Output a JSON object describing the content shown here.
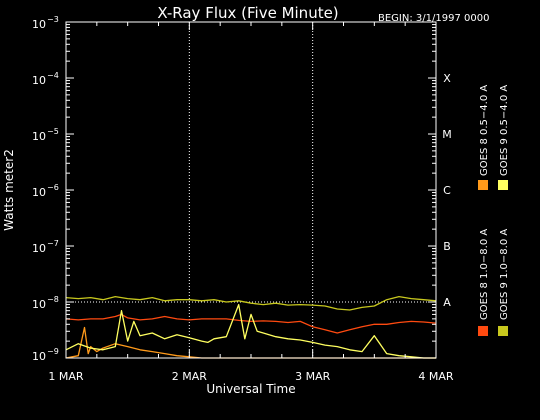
{
  "chart_data": {
    "type": "line",
    "title": "X-Ray Flux (Five Minute)",
    "begin_label": "BEGIN: 3/1/1997 0000",
    "xlabel": "Universal Time",
    "ylabel": "Watts meter2",
    "y_scale": "log",
    "ylim": [
      1e-09,
      0.001
    ],
    "y_ticks": [
      {
        "base": "10",
        "exp": "−9"
      },
      {
        "base": "10",
        "exp": "−8"
      },
      {
        "base": "10",
        "exp": "−7"
      },
      {
        "base": "10",
        "exp": "−6"
      },
      {
        "base": "10",
        "exp": "−5"
      },
      {
        "base": "10",
        "exp": "−4"
      },
      {
        "base": "10",
        "exp": "−3"
      }
    ],
    "x_ticks": [
      "1 MAR",
      "2 MAR",
      "3 MAR",
      "4 MAR"
    ],
    "x_range_days": [
      0,
      3
    ],
    "grid": "dotted vertical at day boundaries, dotted horizontal at 1e-8",
    "flare_classes": [
      {
        "label": "A",
        "level": 1e-08
      },
      {
        "label": "B",
        "level": 1e-07
      },
      {
        "label": "C",
        "level": 1e-06
      },
      {
        "label": "M",
        "level": 1e-05
      },
      {
        "label": "X",
        "level": 0.0001
      }
    ],
    "series": [
      {
        "name": "GOES 8 1.0−8.0 A",
        "color": "#ff4a10",
        "x": [
          0,
          0.1,
          0.2,
          0.3,
          0.4,
          0.45,
          0.5,
          0.6,
          0.7,
          0.8,
          0.9,
          1.0,
          1.1,
          1.2,
          1.3,
          1.4,
          1.5,
          1.6,
          1.7,
          1.8,
          1.9,
          2.0,
          2.1,
          2.2,
          2.3,
          2.4,
          2.5,
          2.6,
          2.7,
          2.8,
          2.9,
          3.0
        ],
        "values": [
          5e-09,
          4.8e-09,
          5e-09,
          5e-09,
          5.5e-09,
          6e-09,
          5.2e-09,
          4.8e-09,
          5e-09,
          5.5e-09,
          5e-09,
          4.8e-09,
          5e-09,
          5e-09,
          5e-09,
          4.7e-09,
          4.5e-09,
          4.6e-09,
          4.5e-09,
          4.3e-09,
          4.5e-09,
          3.6e-09,
          3.2e-09,
          2.8e-09,
          3.2e-09,
          3.6e-09,
          4e-09,
          4e-09,
          4.3e-09,
          4.5e-09,
          4.4e-09,
          4.2e-09
        ]
      },
      {
        "name": "GOES 8 0.5−4.0 A",
        "color": "#ff9a1a",
        "x": [
          0,
          0.05,
          0.1,
          0.15,
          0.18,
          0.2,
          0.25,
          0.3,
          0.4,
          0.5,
          0.6,
          0.7,
          0.8,
          0.9,
          1.0,
          1.1,
          1.2,
          1.3,
          1.4,
          1.5,
          1.6,
          1.7,
          1.8,
          1.9,
          2.0,
          2.1,
          2.2,
          2.3,
          2.4,
          2.5,
          2.6,
          2.7,
          2.8,
          2.9,
          3.0
        ],
        "values": [
          1e-09,
          1.05e-09,
          1.1e-09,
          3.5e-09,
          1.2e-09,
          1.6e-09,
          1.3e-09,
          1.5e-09,
          1.8e-09,
          1.6e-09,
          1.4e-09,
          1.3e-09,
          1.2e-09,
          1.1e-09,
          1.05e-09,
          1e-09,
          1e-09,
          1e-09,
          1e-09,
          1e-09,
          1e-09,
          1e-09,
          1e-09,
          1e-09,
          1e-09,
          1e-09,
          1e-09,
          1e-09,
          1e-09,
          1e-09,
          1e-09,
          1e-09,
          1e-09,
          1e-09,
          1e-09
        ]
      },
      {
        "name": "GOES 9 0.5−4.0 A",
        "color": "#ffff60",
        "x": [
          0,
          0.1,
          0.2,
          0.3,
          0.4,
          0.45,
          0.5,
          0.55,
          0.6,
          0.7,
          0.8,
          0.9,
          1.0,
          1.1,
          1.15,
          1.2,
          1.3,
          1.4,
          1.45,
          1.5,
          1.55,
          1.6,
          1.7,
          1.8,
          1.9,
          2.0,
          2.1,
          2.2,
          2.3,
          2.4,
          2.5,
          2.6,
          2.7,
          2.8,
          2.9,
          3.0
        ],
        "values": [
          1.4e-09,
          1.8e-09,
          1.5e-09,
          1.4e-09,
          1.6e-09,
          7e-09,
          2e-09,
          4.5e-09,
          2.5e-09,
          2.8e-09,
          2.2e-09,
          2.6e-09,
          2.3e-09,
          2e-09,
          1.9e-09,
          2.2e-09,
          2.4e-09,
          9e-09,
          2.2e-09,
          6e-09,
          3e-09,
          2.8e-09,
          2.4e-09,
          2.2e-09,
          2.1e-09,
          1.9e-09,
          1.7e-09,
          1.6e-09,
          1.4e-09,
          1.3e-09,
          2.5e-09,
          1.2e-09,
          1.1e-09,
          1.05e-09,
          1e-09,
          1e-09
        ]
      },
      {
        "name": "GOES 9 1.0−8.0 A",
        "color": "#c8c81e",
        "x": [
          0,
          0.1,
          0.2,
          0.3,
          0.4,
          0.5,
          0.6,
          0.7,
          0.8,
          0.9,
          1.0,
          1.1,
          1.2,
          1.3,
          1.4,
          1.5,
          1.6,
          1.7,
          1.8,
          1.9,
          2.0,
          2.1,
          2.2,
          2.3,
          2.4,
          2.5,
          2.6,
          2.7,
          2.8,
          2.9,
          3.0
        ],
        "values": [
          1.2e-08,
          1.15e-08,
          1.2e-08,
          1.1e-08,
          1.25e-08,
          1.15e-08,
          1.1e-08,
          1.2e-08,
          1.05e-08,
          1.1e-08,
          1.1e-08,
          1.05e-08,
          1.1e-08,
          1e-08,
          1.05e-08,
          9.5e-09,
          9e-09,
          9.5e-09,
          8.8e-09,
          9e-09,
          8.8e-09,
          8.5e-09,
          7.5e-09,
          7.2e-09,
          8e-09,
          8.5e-09,
          1.1e-08,
          1.25e-08,
          1.15e-08,
          1.1e-08,
          1.05e-08
        ]
      }
    ]
  }
}
